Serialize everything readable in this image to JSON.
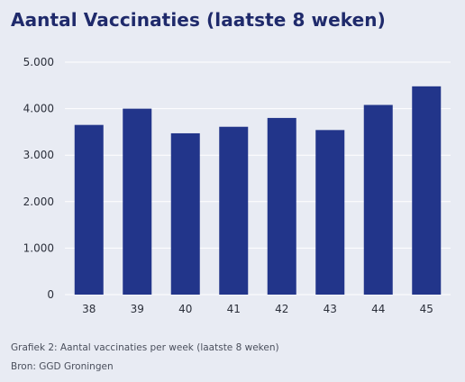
{
  "title": "Aantal Vaccinaties (laatste 8 weken)",
  "caption": "Grafiek 2: Aantal vaccinaties per week (laatste 8 weken)",
  "source": "Bron: GGD Groningen",
  "colors": {
    "background": "#e8ebf3",
    "bar": "#22358a",
    "title": "#1f2a6b",
    "gridline": "#ffffff"
  },
  "chart_data": {
    "type": "bar",
    "title": "Aantal Vaccinaties (laatste 8 weken)",
    "xlabel": "",
    "ylabel": "",
    "categories": [
      "38",
      "39",
      "40",
      "41",
      "42",
      "43",
      "44",
      "45"
    ],
    "values": [
      3650,
      4000,
      3470,
      3610,
      3800,
      3540,
      4080,
      4480
    ],
    "ylim": [
      0,
      5000
    ],
    "yticks": [
      0,
      1000,
      2000,
      3000,
      4000,
      5000
    ],
    "ytick_labels": [
      "0",
      "1.000",
      "2.000",
      "3.000",
      "4.000",
      "5.000"
    ],
    "grid": true,
    "legend": "none"
  }
}
